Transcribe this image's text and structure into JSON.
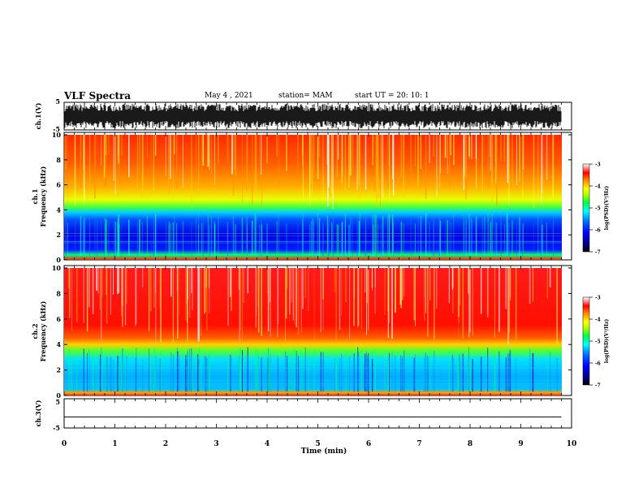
{
  "header": {
    "title": "VLF Spectra",
    "date": "May 4  , 2021",
    "station": "station= MAM",
    "start_time": "start  UT  =   20: 10: 1"
  },
  "chart_data": [
    {
      "type": "line",
      "panel": "waveform-ch1",
      "ylabel": "ch.1(V)",
      "ylim": [
        -5,
        5
      ],
      "yticks": [
        "5",
        "-5"
      ]
    },
    {
      "type": "heatmap",
      "panel": "spectrogram-ch1",
      "ylabel": "ch.1\nFrequency (kHz)",
      "ylim": [
        0,
        10
      ],
      "yticks": [
        "0",
        "2",
        "4",
        "6",
        "8",
        "10"
      ],
      "colorbar": {
        "label": "log(PSD)(V²/Hz)",
        "range": [
          -7,
          -3
        ],
        "ticks": [
          "-3",
          "-4",
          "-5",
          "-6",
          "-7"
        ]
      },
      "description_values": {
        "low_band_kHz": [
          0.3,
          3.8
        ],
        "high_band_kHz": [
          4.5,
          10
        ]
      }
    },
    {
      "type": "heatmap",
      "panel": "spectrogram-ch2",
      "ylabel": "ch.2\nFrequency (kHz)",
      "ylim": [
        0,
        10
      ],
      "yticks": [
        "0",
        "2",
        "4",
        "6",
        "8",
        "10"
      ],
      "colorbar": {
        "label": "log(PSD)(V²/Hz)",
        "range": [
          -7,
          -3
        ],
        "ticks": [
          "-3",
          "-4",
          "-5",
          "-6",
          "-7"
        ]
      }
    },
    {
      "type": "line",
      "panel": "waveform-ch3",
      "ylabel": "ch.3(V)",
      "ylim": [
        -5,
        5
      ],
      "yticks": [
        "5",
        "-5"
      ],
      "value": -1.2
    }
  ],
  "xaxis": {
    "label": "Time  (min)",
    "range": [
      0,
      10
    ],
    "ticks": [
      "0",
      "1",
      "2",
      "3",
      "4",
      "5",
      "6",
      "7",
      "8",
      "9",
      "10"
    ],
    "data_end": 9.8
  },
  "colors": {
    "scale": [
      "#000066",
      "#0000ff",
      "#00ffff",
      "#00ff00",
      "#ffff00",
      "#ff0000",
      "#ffffff"
    ]
  }
}
